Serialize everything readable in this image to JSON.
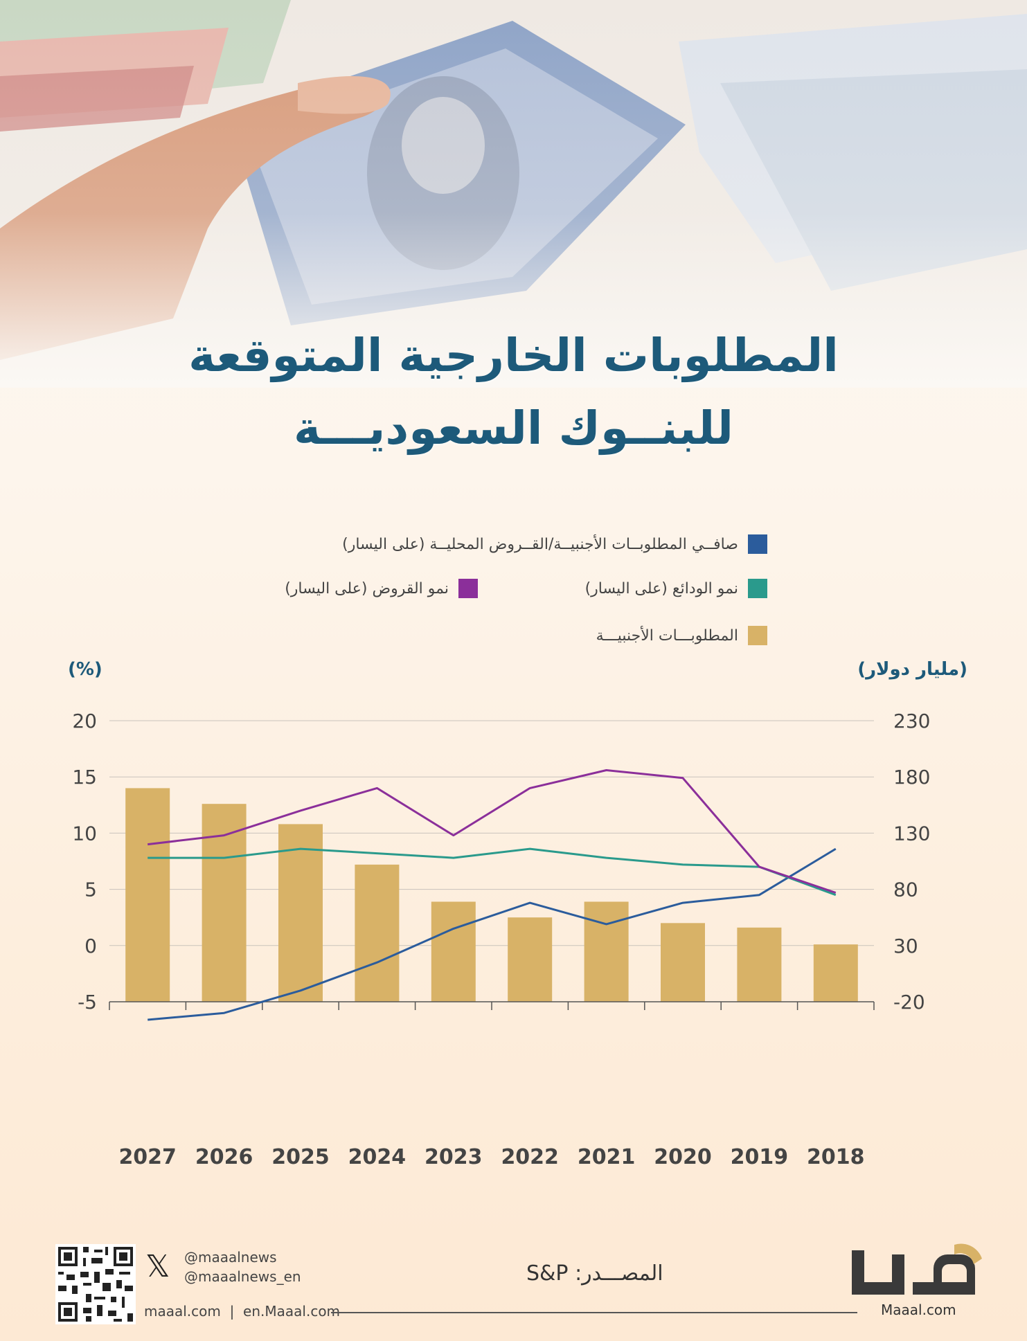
{
  "title_line1": "المطلوبات الخارجية المتوقعة",
  "title_line2": "للبنــوك السعوديـــة",
  "legend": {
    "net": "صافــي المطلوبــات الأجنبيــة/القــروض المحليــة (على اليسار)",
    "deposits": "نمو الودائع (على اليسار)",
    "loans": "نمو القروض (على اليسار)",
    "liabilities": "المطلوبـــات الأجنبيـــة"
  },
  "units": {
    "left": "(%)",
    "right": "(مليار دولار)"
  },
  "colors": {
    "net": "#2b5c9c",
    "deposits": "#2a9a8c",
    "loans": "#8b2f9a",
    "liabilities": "#d8b267",
    "title": "#1d5a7a"
  },
  "chart_data": {
    "type": "bar+line",
    "categories": [
      "2027",
      "2026",
      "2025",
      "2024",
      "2023",
      "2022",
      "2021",
      "2020",
      "2019",
      "2018"
    ],
    "left_axis": {
      "min": -5,
      "max": 20,
      "ticks": [
        "20",
        "15",
        "10",
        "5",
        "0",
        "-5"
      ]
    },
    "right_axis": {
      "min": -20,
      "max": 230,
      "ticks": [
        "230",
        "180",
        "130",
        "80",
        "30",
        "-20"
      ]
    },
    "bars": {
      "values": [
        170,
        156,
        138,
        102,
        69,
        55,
        69,
        50,
        46,
        31
      ]
    },
    "lines": [
      {
        "key": "net",
        "values": [
          -6.6,
          -6.0,
          -4.0,
          -1.5,
          1.5,
          3.8,
          1.9,
          3.8,
          4.5,
          8.6
        ]
      },
      {
        "key": "deposits",
        "values": [
          7.8,
          7.8,
          8.6,
          8.2,
          7.8,
          8.6,
          7.8,
          7.2,
          7.0,
          4.5
        ]
      },
      {
        "key": "loans",
        "values": [
          9.0,
          9.8,
          12.0,
          14.0,
          9.8,
          14.0,
          15.6,
          14.9,
          7.0,
          4.7
        ]
      }
    ]
  },
  "footer": {
    "handle1": "@maaalnews",
    "handle2": "@maaalnews_en",
    "sites": "maaal.com  |  en.Maaal.com",
    "source": "المصـــدر: S&P",
    "brand": "Maaal.com",
    "x_glyph": "𝕏"
  }
}
